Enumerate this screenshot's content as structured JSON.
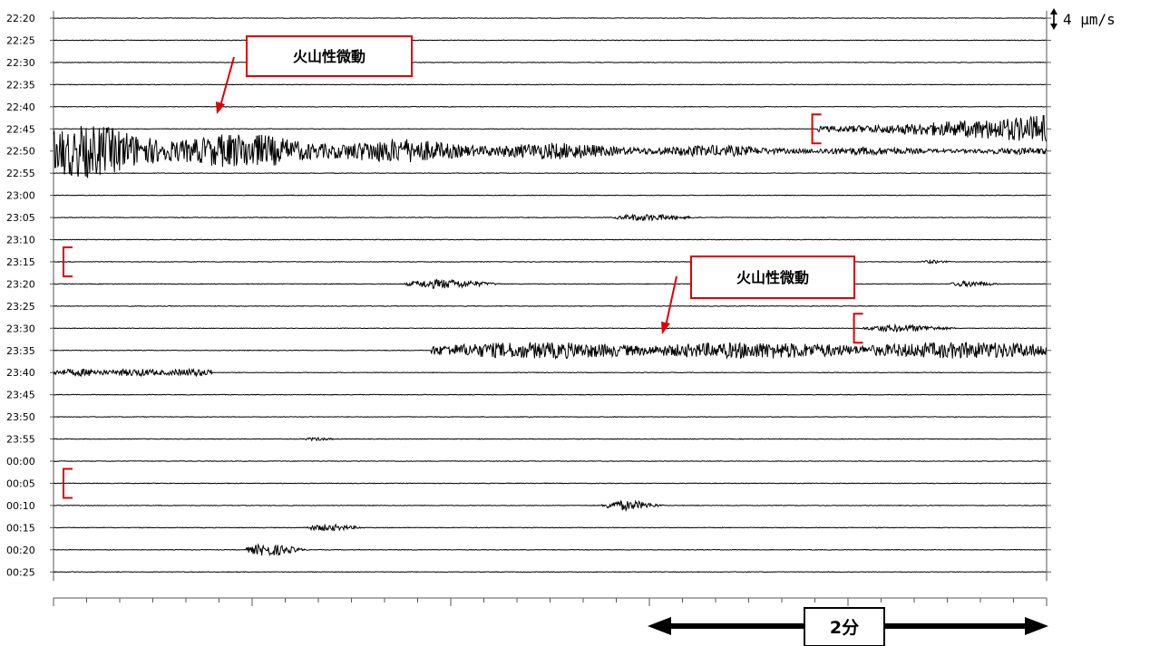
{
  "chart_data": {
    "type": "line",
    "title": "",
    "xlabel": "",
    "ylabel": "",
    "time_labels": [
      "22:20",
      "22:25",
      "22:30",
      "22:35",
      "22:40",
      "22:45",
      "22:50",
      "22:55",
      "23:00",
      "23:05",
      "23:10",
      "23:15",
      "23:20",
      "23:25",
      "23:30",
      "23:35",
      "23:40",
      "23:45",
      "23:50",
      "23:55",
      "00:00",
      "00:05",
      "00:10",
      "00:15",
      "00:20",
      "00:25"
    ],
    "trace_length_minutes": 5,
    "x_tick_interval_seconds": 10,
    "amplitude_scale": "4 μm/s",
    "duration_bar_label": "2分",
    "duration_bar_minutes": 2,
    "annotations": [
      {
        "text": "火山性微動",
        "row": "22:40",
        "at_minute": 0.8
      },
      {
        "text": "火山性微動",
        "row": "23:35",
        "at_minute": 3.0
      }
    ],
    "brackets": [
      {
        "row": "22:45",
        "at_minute": 3.82
      },
      {
        "row": "23:15",
        "at_minute": 0.05
      },
      {
        "row": "23:30",
        "at_minute": 4.03
      },
      {
        "row": "00:05",
        "at_minute": 0.05
      }
    ],
    "events": [
      {
        "row": "22:45",
        "start_minute": 3.85,
        "end_minute": 5.0,
        "peak_um_s": 4.5,
        "kind": "growing"
      },
      {
        "row": "22:50",
        "start_minute": 0.0,
        "end_minute": 5.0,
        "peak_um_s": 9.0,
        "kind": "tremor_decay"
      },
      {
        "row": "23:05",
        "start_minute": 2.8,
        "end_minute": 3.3,
        "peak_um_s": 2.0,
        "kind": "burst"
      },
      {
        "row": "23:15",
        "start_minute": 4.35,
        "end_minute": 4.55,
        "peak_um_s": 1.0,
        "kind": "burst"
      },
      {
        "row": "23:20",
        "start_minute": 1.75,
        "end_minute": 2.3,
        "peak_um_s": 2.8,
        "kind": "burst"
      },
      {
        "row": "23:20",
        "start_minute": 4.5,
        "end_minute": 4.8,
        "peak_um_s": 1.8,
        "kind": "burst"
      },
      {
        "row": "23:30",
        "start_minute": 4.05,
        "end_minute": 4.6,
        "peak_um_s": 2.2,
        "kind": "burst"
      },
      {
        "row": "23:35",
        "start_minute": 1.9,
        "end_minute": 5.0,
        "peak_um_s": 2.6,
        "kind": "tremor"
      },
      {
        "row": "23:40",
        "start_minute": 0.0,
        "end_minute": 0.8,
        "peak_um_s": 1.2,
        "kind": "tremor"
      },
      {
        "row": "23:55",
        "start_minute": 1.25,
        "end_minute": 1.45,
        "peak_um_s": 1.0,
        "kind": "burst"
      },
      {
        "row": "00:10",
        "start_minute": 2.75,
        "end_minute": 3.1,
        "peak_um_s": 3.0,
        "kind": "burst"
      },
      {
        "row": "00:15",
        "start_minute": 1.25,
        "end_minute": 1.6,
        "peak_um_s": 2.0,
        "kind": "burst"
      },
      {
        "row": "00:20",
        "start_minute": 0.95,
        "end_minute": 1.3,
        "peak_um_s": 3.6,
        "kind": "burst"
      }
    ],
    "grid": false,
    "legend": "none"
  }
}
